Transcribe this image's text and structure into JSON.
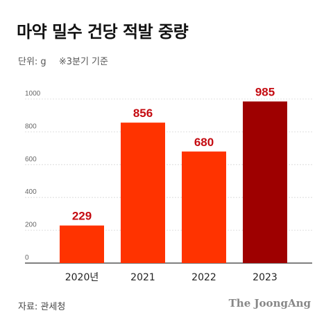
{
  "header": {
    "title": "마약 밀수 건당 적발 중량",
    "unit": "단위: g",
    "note": "※3분기 기준"
  },
  "footer": {
    "source": "자료: 관세청",
    "brand": "The JoongAng"
  },
  "chart_data": {
    "type": "bar",
    "title": "마약 밀수 건당 적발 중량",
    "categories": [
      "2020년",
      "2021",
      "2022",
      "2023"
    ],
    "values": [
      229,
      856,
      680,
      985
    ],
    "data_labels": [
      "229",
      "856",
      "680",
      "985"
    ],
    "ylim": [
      0,
      1000
    ],
    "yticks": [
      0,
      200,
      400,
      600,
      800,
      1000
    ],
    "ytick_labels": [
      "0",
      "200",
      "400",
      "600",
      "800",
      "1000"
    ],
    "grid": true,
    "bar_colors": [
      "#ff3300",
      "#ff3300",
      "#ff3300",
      "#9e0000"
    ],
    "label_color": "#c40a10"
  }
}
